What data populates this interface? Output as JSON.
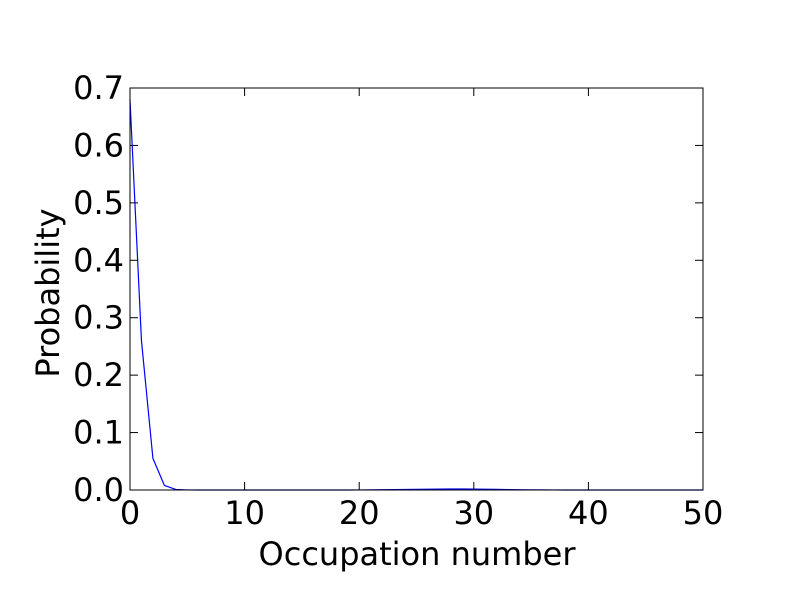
{
  "chart_data": {
    "type": "line",
    "title": "",
    "xlabel": "Occupation number",
    "ylabel": "Probability",
    "xlim": [
      0,
      50
    ],
    "ylim": [
      0,
      0.7
    ],
    "xticks": [
      0,
      10,
      20,
      30,
      40,
      50
    ],
    "xtick_labels": [
      "0",
      "10",
      "20",
      "30",
      "40",
      "50"
    ],
    "yticks": [
      0,
      0.1,
      0.2,
      0.3,
      0.4,
      0.5,
      0.6,
      0.7
    ],
    "ytick_labels": [
      "0.0",
      "0.1",
      "0.2",
      "0.3",
      "0.4",
      "0.5",
      "0.6",
      "0.7"
    ],
    "grid": false,
    "legend": "none",
    "series": [
      {
        "color": "#0000ff",
        "x": [
          0,
          1,
          2,
          3,
          4,
          5,
          6,
          7,
          8,
          9,
          10,
          11,
          12,
          13,
          14,
          15,
          16,
          17,
          18,
          19,
          20,
          21,
          22,
          23,
          24,
          25,
          26,
          27,
          28,
          29,
          30,
          31,
          32,
          33,
          34,
          35,
          36,
          37,
          38,
          39,
          40,
          41,
          42,
          43,
          44,
          45,
          46,
          47,
          48,
          49,
          50
        ],
        "y": [
          0.68,
          0.26,
          0.055,
          0.008,
          0.001,
          0.0001,
          0,
          0,
          0,
          0,
          0,
          0,
          0,
          0,
          0,
          0,
          0,
          0,
          0,
          0,
          0.0001,
          0.0002,
          0.0004,
          0.0006,
          0.0009,
          0.0012,
          0.0014,
          0.0016,
          0.0017,
          0.0017,
          0.0016,
          0.0014,
          0.0011,
          0.0008,
          0.0005,
          0.0003,
          0.0002,
          0.0001,
          0,
          0,
          0,
          0,
          0,
          0,
          0,
          0,
          0,
          0,
          0,
          0,
          0
        ]
      }
    ]
  }
}
